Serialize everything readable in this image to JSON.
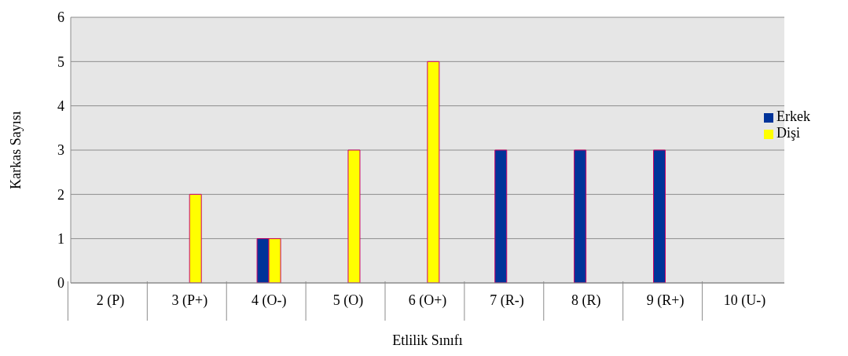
{
  "chart_data": {
    "type": "bar",
    "xlabel": "Etlilik Sınıfı",
    "ylabel": "Karkas  Sayısı",
    "categories": [
      "2 (P)",
      "3 (P+)",
      "4 (O-)",
      "5 (O)",
      "6 (O+)",
      "7 (R-)",
      "8 (R)",
      "9 (R+)",
      "10 (U-)"
    ],
    "series": [
      {
        "name": "Erkek",
        "color": "#003399",
        "values": [
          0,
          0,
          1,
          0,
          0,
          3,
          3,
          3,
          0
        ]
      },
      {
        "name": "Dişi",
        "color": "#ffff00",
        "values": [
          0,
          2,
          1,
          3,
          5,
          0,
          0,
          0,
          0
        ]
      }
    ],
    "ylim": [
      0,
      6
    ],
    "yticks": [
      0,
      1,
      2,
      3,
      4,
      5,
      6
    ],
    "grid": "y",
    "legend": "right"
  }
}
